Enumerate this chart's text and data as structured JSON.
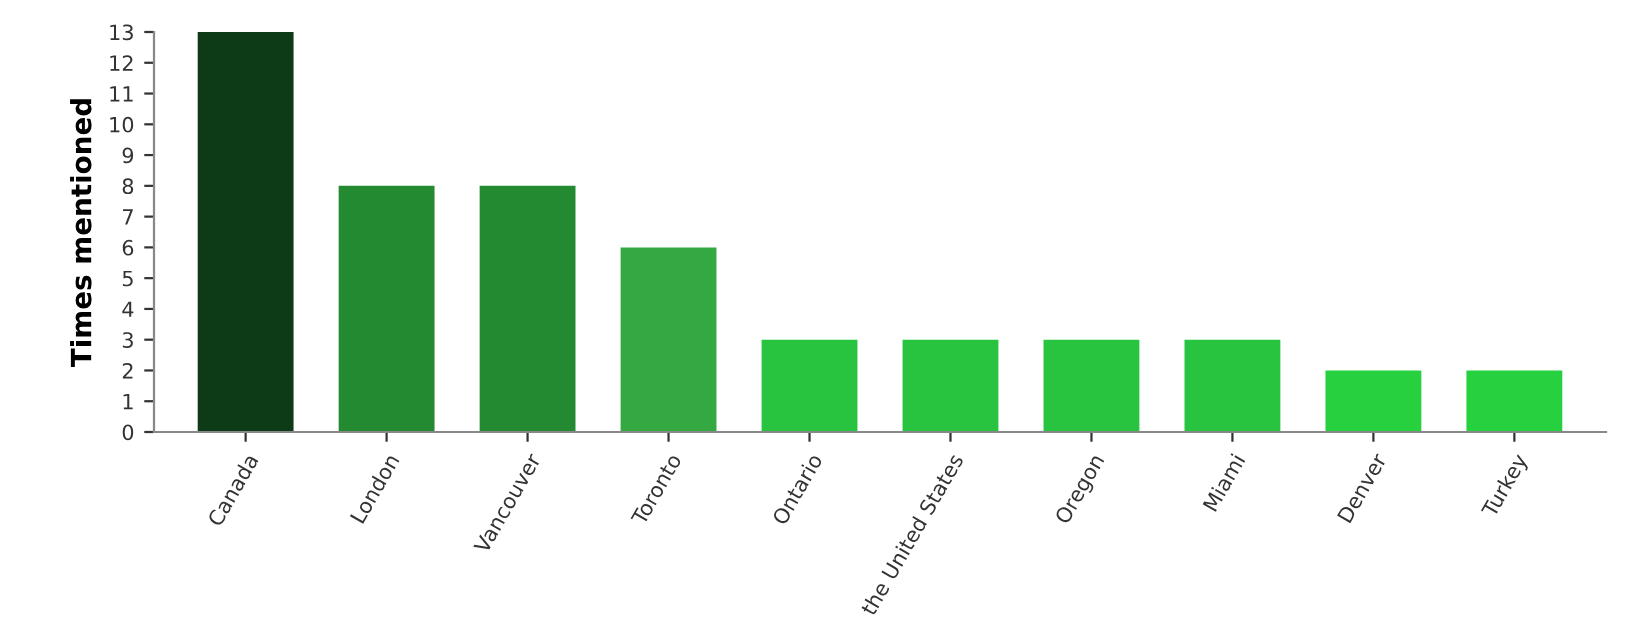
{
  "chart_data": {
    "type": "bar",
    "ylabel": "Times mentioned",
    "categories": [
      "Canada",
      "London",
      "Vancouver",
      "Toronto",
      "Ontario",
      "the United States",
      "Oregon",
      "Miami",
      "Denver",
      "Turkey"
    ],
    "values": [
      13,
      8,
      8,
      6,
      3,
      3,
      3,
      3,
      2,
      2
    ],
    "colors": [
      "#0e3b17",
      "#248a32",
      "#248a32",
      "#34a841",
      "#28c440",
      "#28c440",
      "#28c440",
      "#28c440",
      "#27d03f",
      "#27d03f"
    ],
    "ylim": [
      0,
      13
    ],
    "yticks": [
      0,
      1,
      2,
      3,
      4,
      5,
      6,
      7,
      8,
      9,
      10,
      11,
      12,
      13
    ],
    "grid": false,
    "legend": false
  }
}
